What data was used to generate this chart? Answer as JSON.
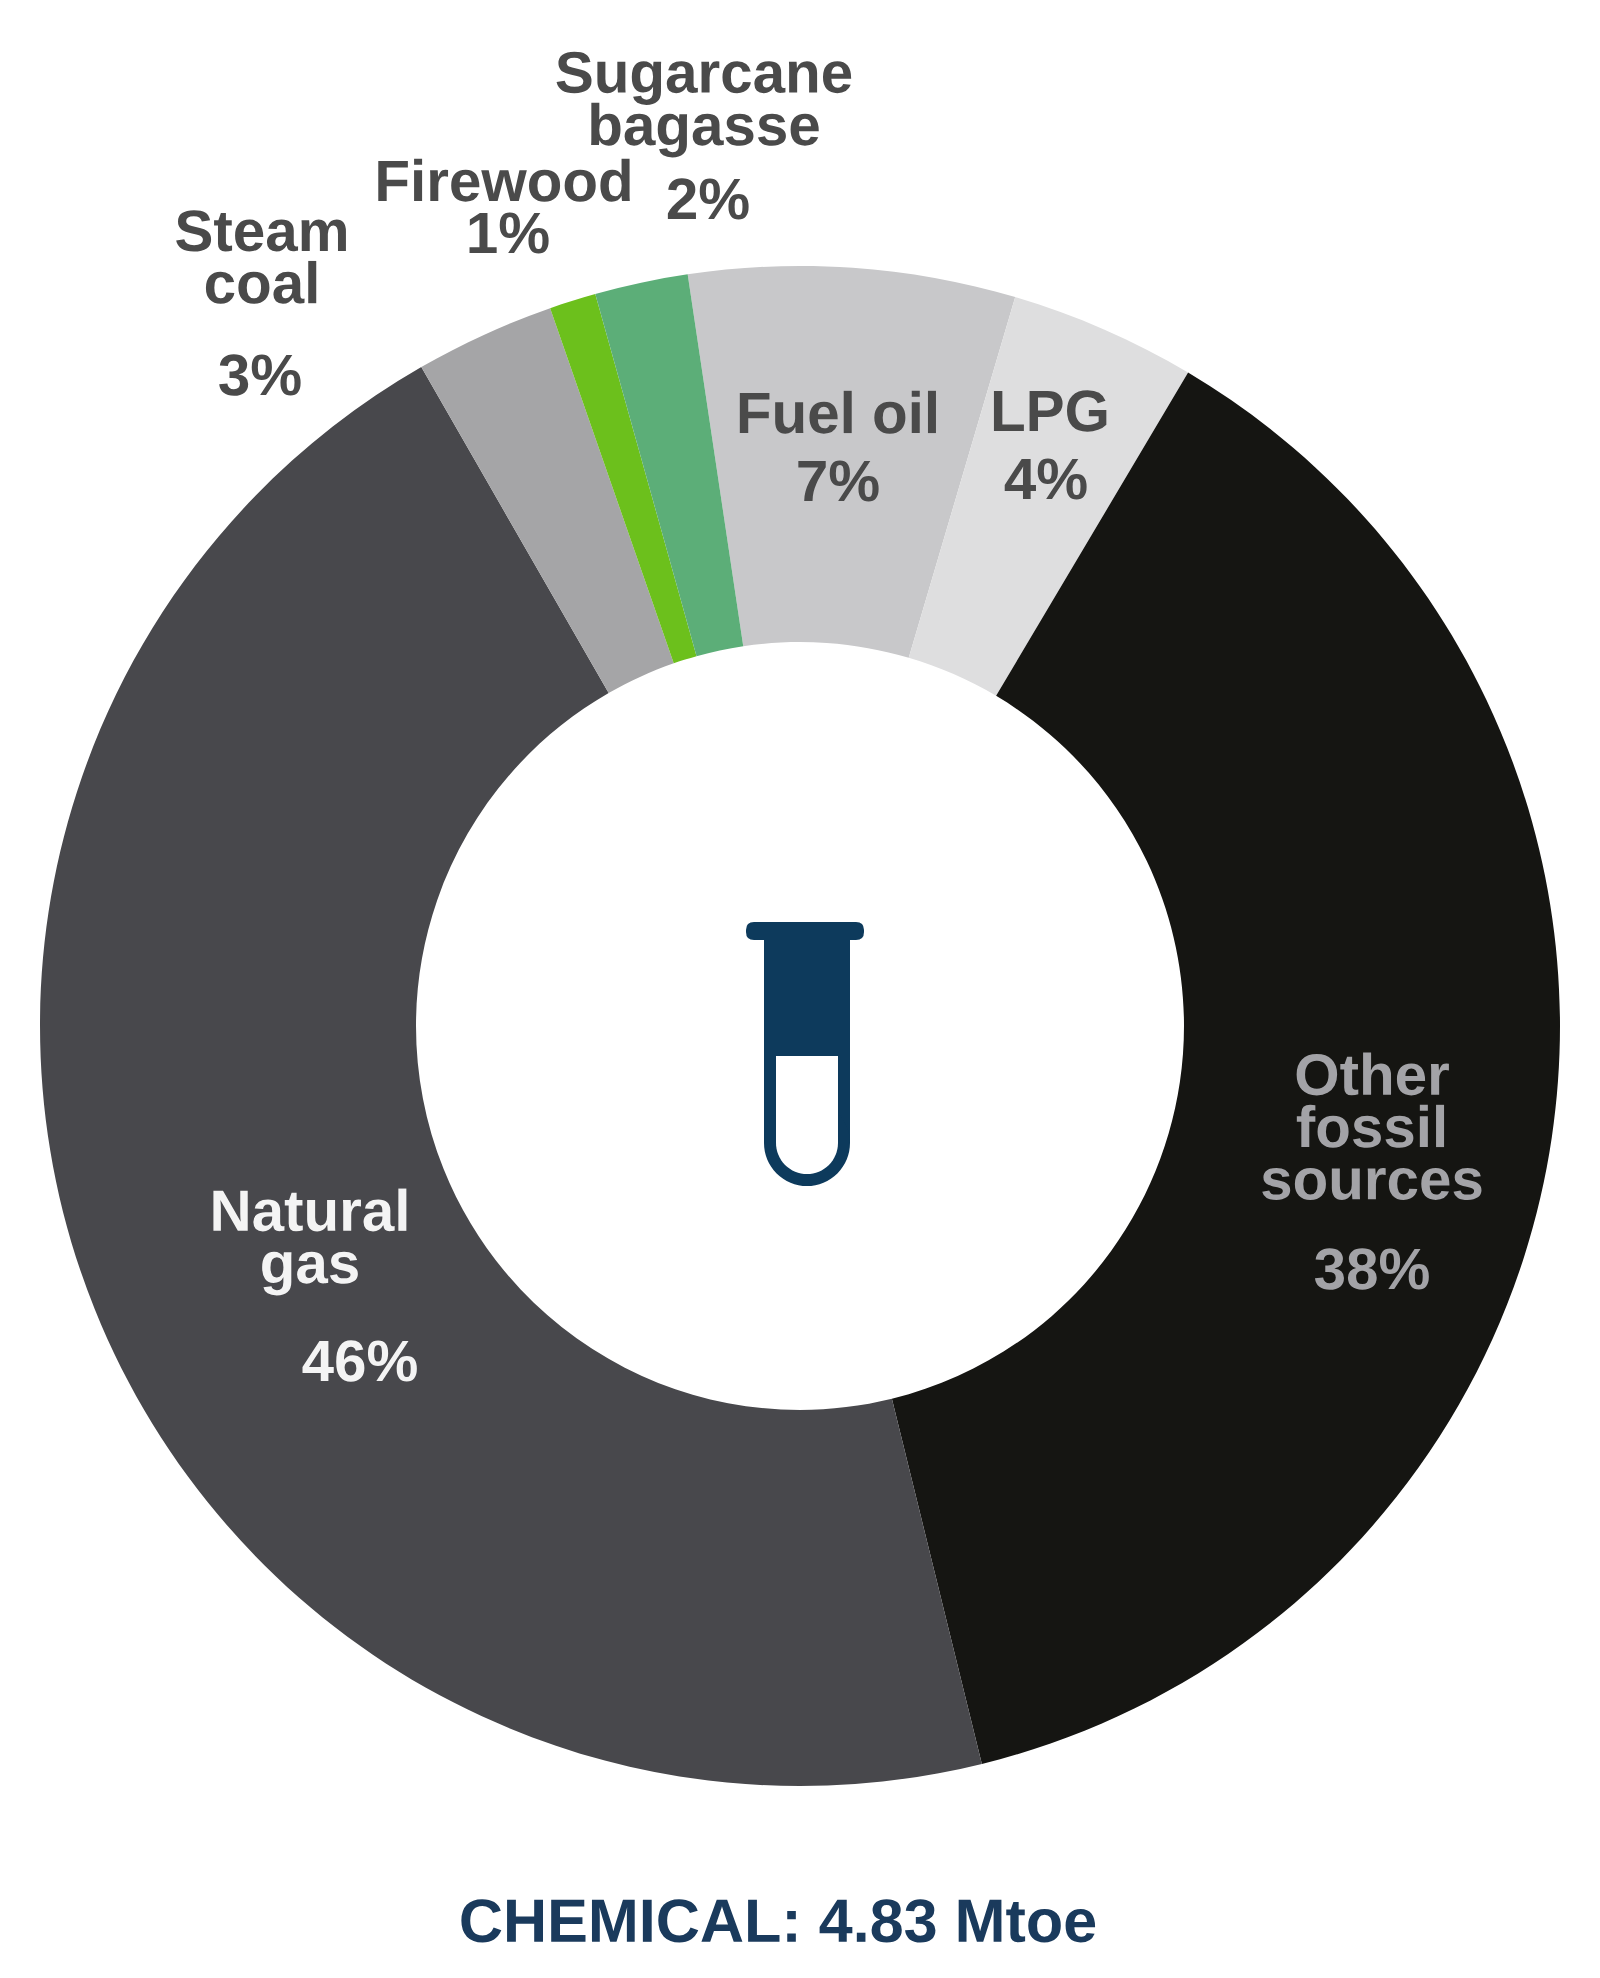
{
  "chart_data": {
    "type": "donut",
    "title": "CHEMICAL: 4.83 Mtoe",
    "categories": [
      "Fuel oil",
      "LPG",
      "Other\nfossil\nsources",
      "Natural\ngas",
      "Steam\ncoal",
      "Firewood",
      "Sugarcane\nbagasse"
    ],
    "values": [
      7,
      4,
      38,
      46,
      3,
      1,
      2
    ],
    "value_labels": [
      "7%",
      "4%",
      "38%",
      "46%",
      "3%",
      "1%",
      "2%"
    ],
    "colors": [
      "#c8c8ca",
      "#dededf",
      "#151512",
      "#48484c",
      "#a5a5a7",
      "#6cc01c",
      "#5cae78"
    ]
  }
}
